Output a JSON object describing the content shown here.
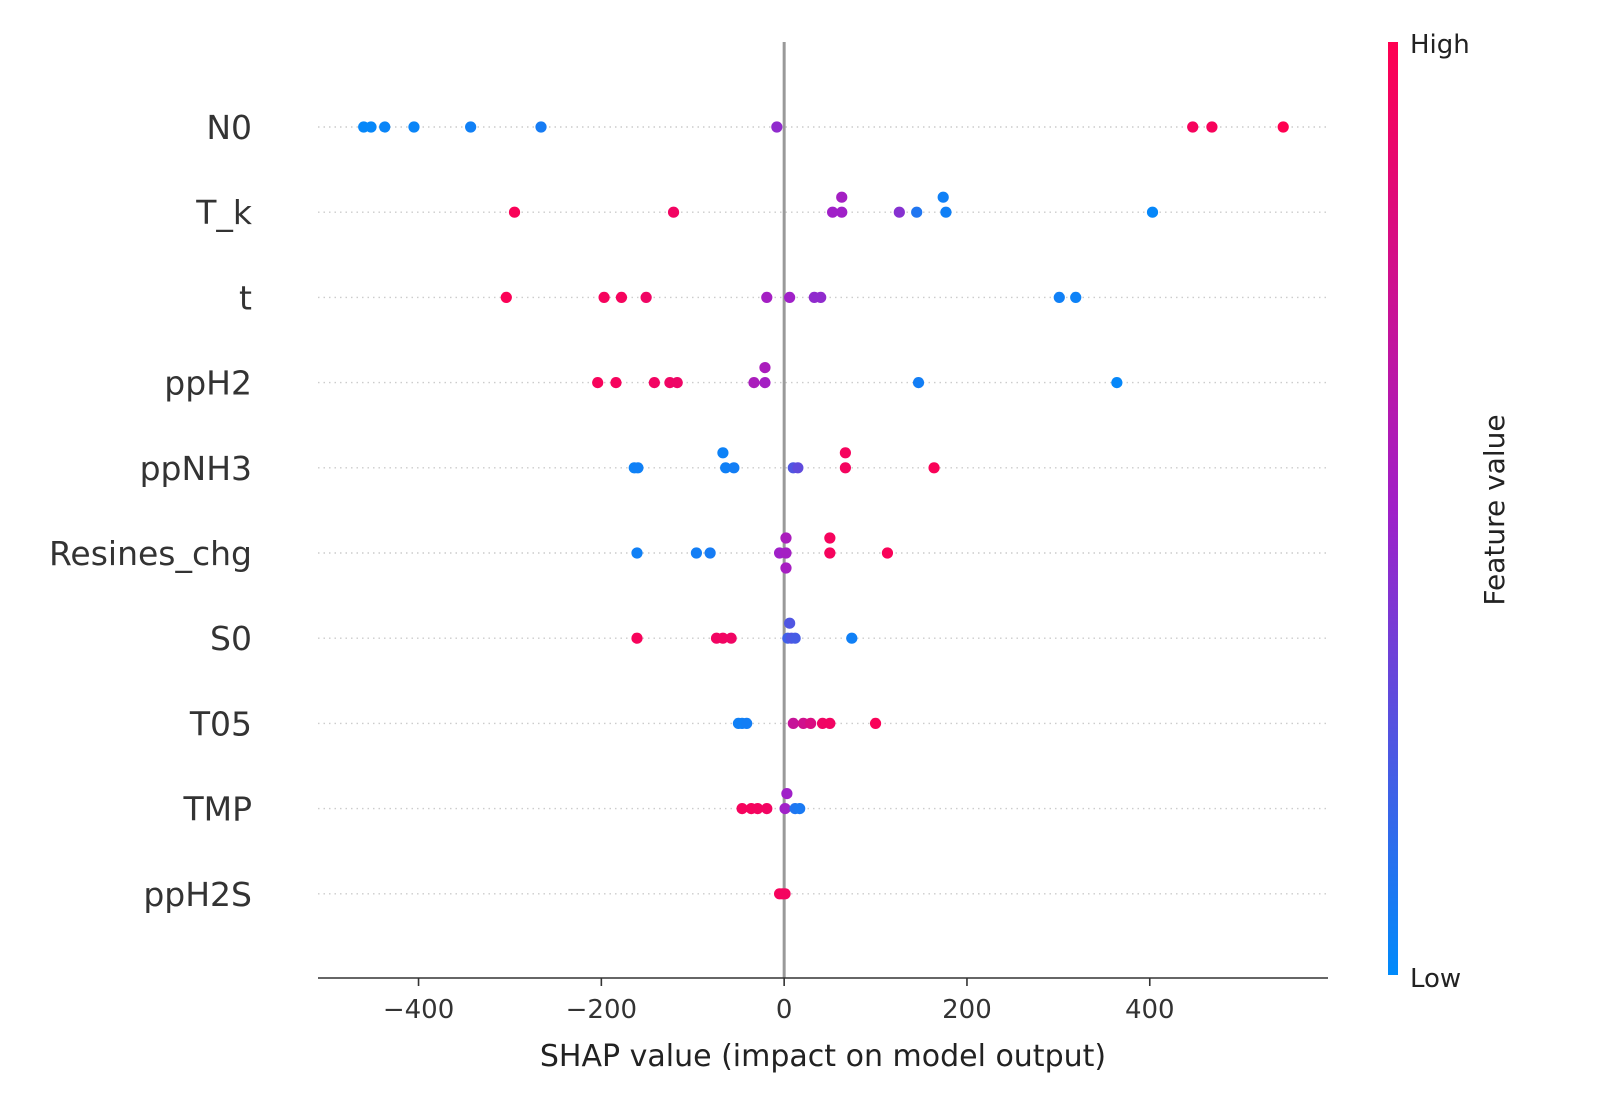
{
  "chart_data": {
    "type": "scatter",
    "subtype": "shap-beeswarm",
    "xlabel": "SHAP value (impact on model output)",
    "xlim": [
      -510,
      595
    ],
    "xticks": [
      -400,
      -200,
      0,
      200,
      400
    ],
    "xtick_labels": [
      "−400",
      "−200",
      "0",
      "200",
      "400"
    ],
    "colorbar": {
      "label": "Feature value",
      "high": "High",
      "low": "Low",
      "low_color": "#008bfb",
      "mid_color": "#a020c8",
      "high_color": "#ff0051"
    },
    "features": [
      {
        "name": "N0",
        "points": [
          {
            "x": -460,
            "v": 0.02,
            "o": 0
          },
          {
            "x": -452,
            "v": 0.02,
            "o": 0
          },
          {
            "x": -437,
            "v": 0.03,
            "o": 0
          },
          {
            "x": -405,
            "v": 0.03,
            "o": 0
          },
          {
            "x": -343,
            "v": 0.05,
            "o": 0
          },
          {
            "x": -266,
            "v": 0.07,
            "o": 0
          },
          {
            "x": -8,
            "v": 0.45,
            "o": 0
          },
          {
            "x": 447,
            "v": 0.95,
            "o": 0
          },
          {
            "x": 468,
            "v": 0.96,
            "o": 0
          },
          {
            "x": 546,
            "v": 1.0,
            "o": 0
          }
        ]
      },
      {
        "name": "T_k",
        "points": [
          {
            "x": -295,
            "v": 0.97,
            "o": 0
          },
          {
            "x": -121,
            "v": 0.93,
            "o": 0
          },
          {
            "x": 53,
            "v": 0.5,
            "o": 0
          },
          {
            "x": 63,
            "v": 0.52,
            "o": -1
          },
          {
            "x": 63,
            "v": 0.5,
            "o": 0
          },
          {
            "x": 126,
            "v": 0.42,
            "o": 0
          },
          {
            "x": 145,
            "v": 0.1,
            "o": 0
          },
          {
            "x": 174,
            "v": 0.05,
            "o": -1
          },
          {
            "x": 177,
            "v": 0.05,
            "o": 0
          },
          {
            "x": 403,
            "v": 0.02,
            "o": 0
          }
        ]
      },
      {
        "name": "t",
        "points": [
          {
            "x": -304,
            "v": 0.98,
            "o": 0
          },
          {
            "x": -197,
            "v": 0.95,
            "o": 0
          },
          {
            "x": -178,
            "v": 0.95,
            "o": 0
          },
          {
            "x": -151,
            "v": 0.92,
            "o": 0
          },
          {
            "x": -19,
            "v": 0.52,
            "o": 0
          },
          {
            "x": 6,
            "v": 0.5,
            "o": 0
          },
          {
            "x": 33,
            "v": 0.45,
            "o": 0
          },
          {
            "x": 40,
            "v": 0.45,
            "o": 0
          },
          {
            "x": 301,
            "v": 0.05,
            "o": 0
          },
          {
            "x": 319,
            "v": 0.04,
            "o": 0
          }
        ]
      },
      {
        "name": "ppH2",
        "points": [
          {
            "x": -204,
            "v": 0.96,
            "o": 0
          },
          {
            "x": -184,
            "v": 0.95,
            "o": 0
          },
          {
            "x": -142,
            "v": 0.93,
            "o": 0
          },
          {
            "x": -125,
            "v": 0.92,
            "o": 0
          },
          {
            "x": -117,
            "v": 0.91,
            "o": 0
          },
          {
            "x": -21,
            "v": 0.55,
            "o": -1
          },
          {
            "x": -33,
            "v": 0.55,
            "o": 0
          },
          {
            "x": -21,
            "v": 0.52,
            "o": 0
          },
          {
            "x": 147,
            "v": 0.06,
            "o": 0
          },
          {
            "x": 364,
            "v": 0.02,
            "o": 0
          }
        ]
      },
      {
        "name": "ppNH3",
        "points": [
          {
            "x": -67,
            "v": 0.04,
            "o": -1
          },
          {
            "x": -164,
            "v": 0.04,
            "o": 0
          },
          {
            "x": -160,
            "v": 0.05,
            "o": 0
          },
          {
            "x": -64,
            "v": 0.05,
            "o": 0
          },
          {
            "x": -55,
            "v": 0.06,
            "o": 0
          },
          {
            "x": 10,
            "v": 0.25,
            "o": 0
          },
          {
            "x": 15,
            "v": 0.3,
            "o": 0
          },
          {
            "x": 67,
            "v": 0.95,
            "o": -1
          },
          {
            "x": 67,
            "v": 0.94,
            "o": 0
          },
          {
            "x": 164,
            "v": 0.97,
            "o": 0
          }
        ]
      },
      {
        "name": "Resines_chg",
        "points": [
          {
            "x": 2,
            "v": 0.55,
            "o": -1
          },
          {
            "x": 50,
            "v": 0.95,
            "o": -1
          },
          {
            "x": -161,
            "v": 0.05,
            "o": 0
          },
          {
            "x": -96,
            "v": 0.06,
            "o": 0
          },
          {
            "x": -81,
            "v": 0.07,
            "o": 0
          },
          {
            "x": -5,
            "v": 0.5,
            "o": 0
          },
          {
            "x": 2,
            "v": 0.52,
            "o": 0
          },
          {
            "x": 50,
            "v": 0.95,
            "o": 0
          },
          {
            "x": 113,
            "v": 0.97,
            "o": 0
          },
          {
            "x": 2,
            "v": 0.53,
            "o": 1
          }
        ]
      },
      {
        "name": "S0",
        "points": [
          {
            "x": 6,
            "v": 0.25,
            "o": -1
          },
          {
            "x": -161,
            "v": 0.96,
            "o": 0
          },
          {
            "x": -74,
            "v": 0.93,
            "o": 0
          },
          {
            "x": -67,
            "v": 0.93,
            "o": 0
          },
          {
            "x": -58,
            "v": 0.92,
            "o": 0
          },
          {
            "x": 4,
            "v": 0.2,
            "o": 0
          },
          {
            "x": 8,
            "v": 0.25,
            "o": 0
          },
          {
            "x": 12,
            "v": 0.22,
            "o": 0
          },
          {
            "x": 74,
            "v": 0.05,
            "o": 0
          }
        ]
      },
      {
        "name": "T05",
        "points": [
          {
            "x": -50,
            "v": 0.05,
            "o": 0
          },
          {
            "x": -46,
            "v": 0.05,
            "o": 0
          },
          {
            "x": -41,
            "v": 0.06,
            "o": 0
          },
          {
            "x": 10,
            "v": 0.7,
            "o": 0
          },
          {
            "x": 21,
            "v": 0.75,
            "o": 0
          },
          {
            "x": 29,
            "v": 0.8,
            "o": 0
          },
          {
            "x": 42,
            "v": 0.92,
            "o": 0
          },
          {
            "x": 50,
            "v": 0.93,
            "o": 0
          },
          {
            "x": 100,
            "v": 0.97,
            "o": 0
          }
        ]
      },
      {
        "name": "TMP",
        "points": [
          {
            "x": 3,
            "v": 0.5,
            "o": -1
          },
          {
            "x": -46,
            "v": 0.95,
            "o": 0
          },
          {
            "x": -36,
            "v": 0.95,
            "o": 0
          },
          {
            "x": -29,
            "v": 0.94,
            "o": 0
          },
          {
            "x": -19,
            "v": 0.93,
            "o": 0
          },
          {
            "x": 1,
            "v": 0.5,
            "o": 0
          },
          {
            "x": 12,
            "v": 0.1,
            "o": 0
          },
          {
            "x": 17,
            "v": 0.08,
            "o": 0
          }
        ]
      },
      {
        "name": "ppH2S",
        "points": [
          {
            "x": -5,
            "v": 0.95,
            "o": 0
          },
          {
            "x": -2,
            "v": 0.95,
            "o": 0
          },
          {
            "x": 1,
            "v": 0.94,
            "o": 0
          }
        ]
      }
    ]
  }
}
